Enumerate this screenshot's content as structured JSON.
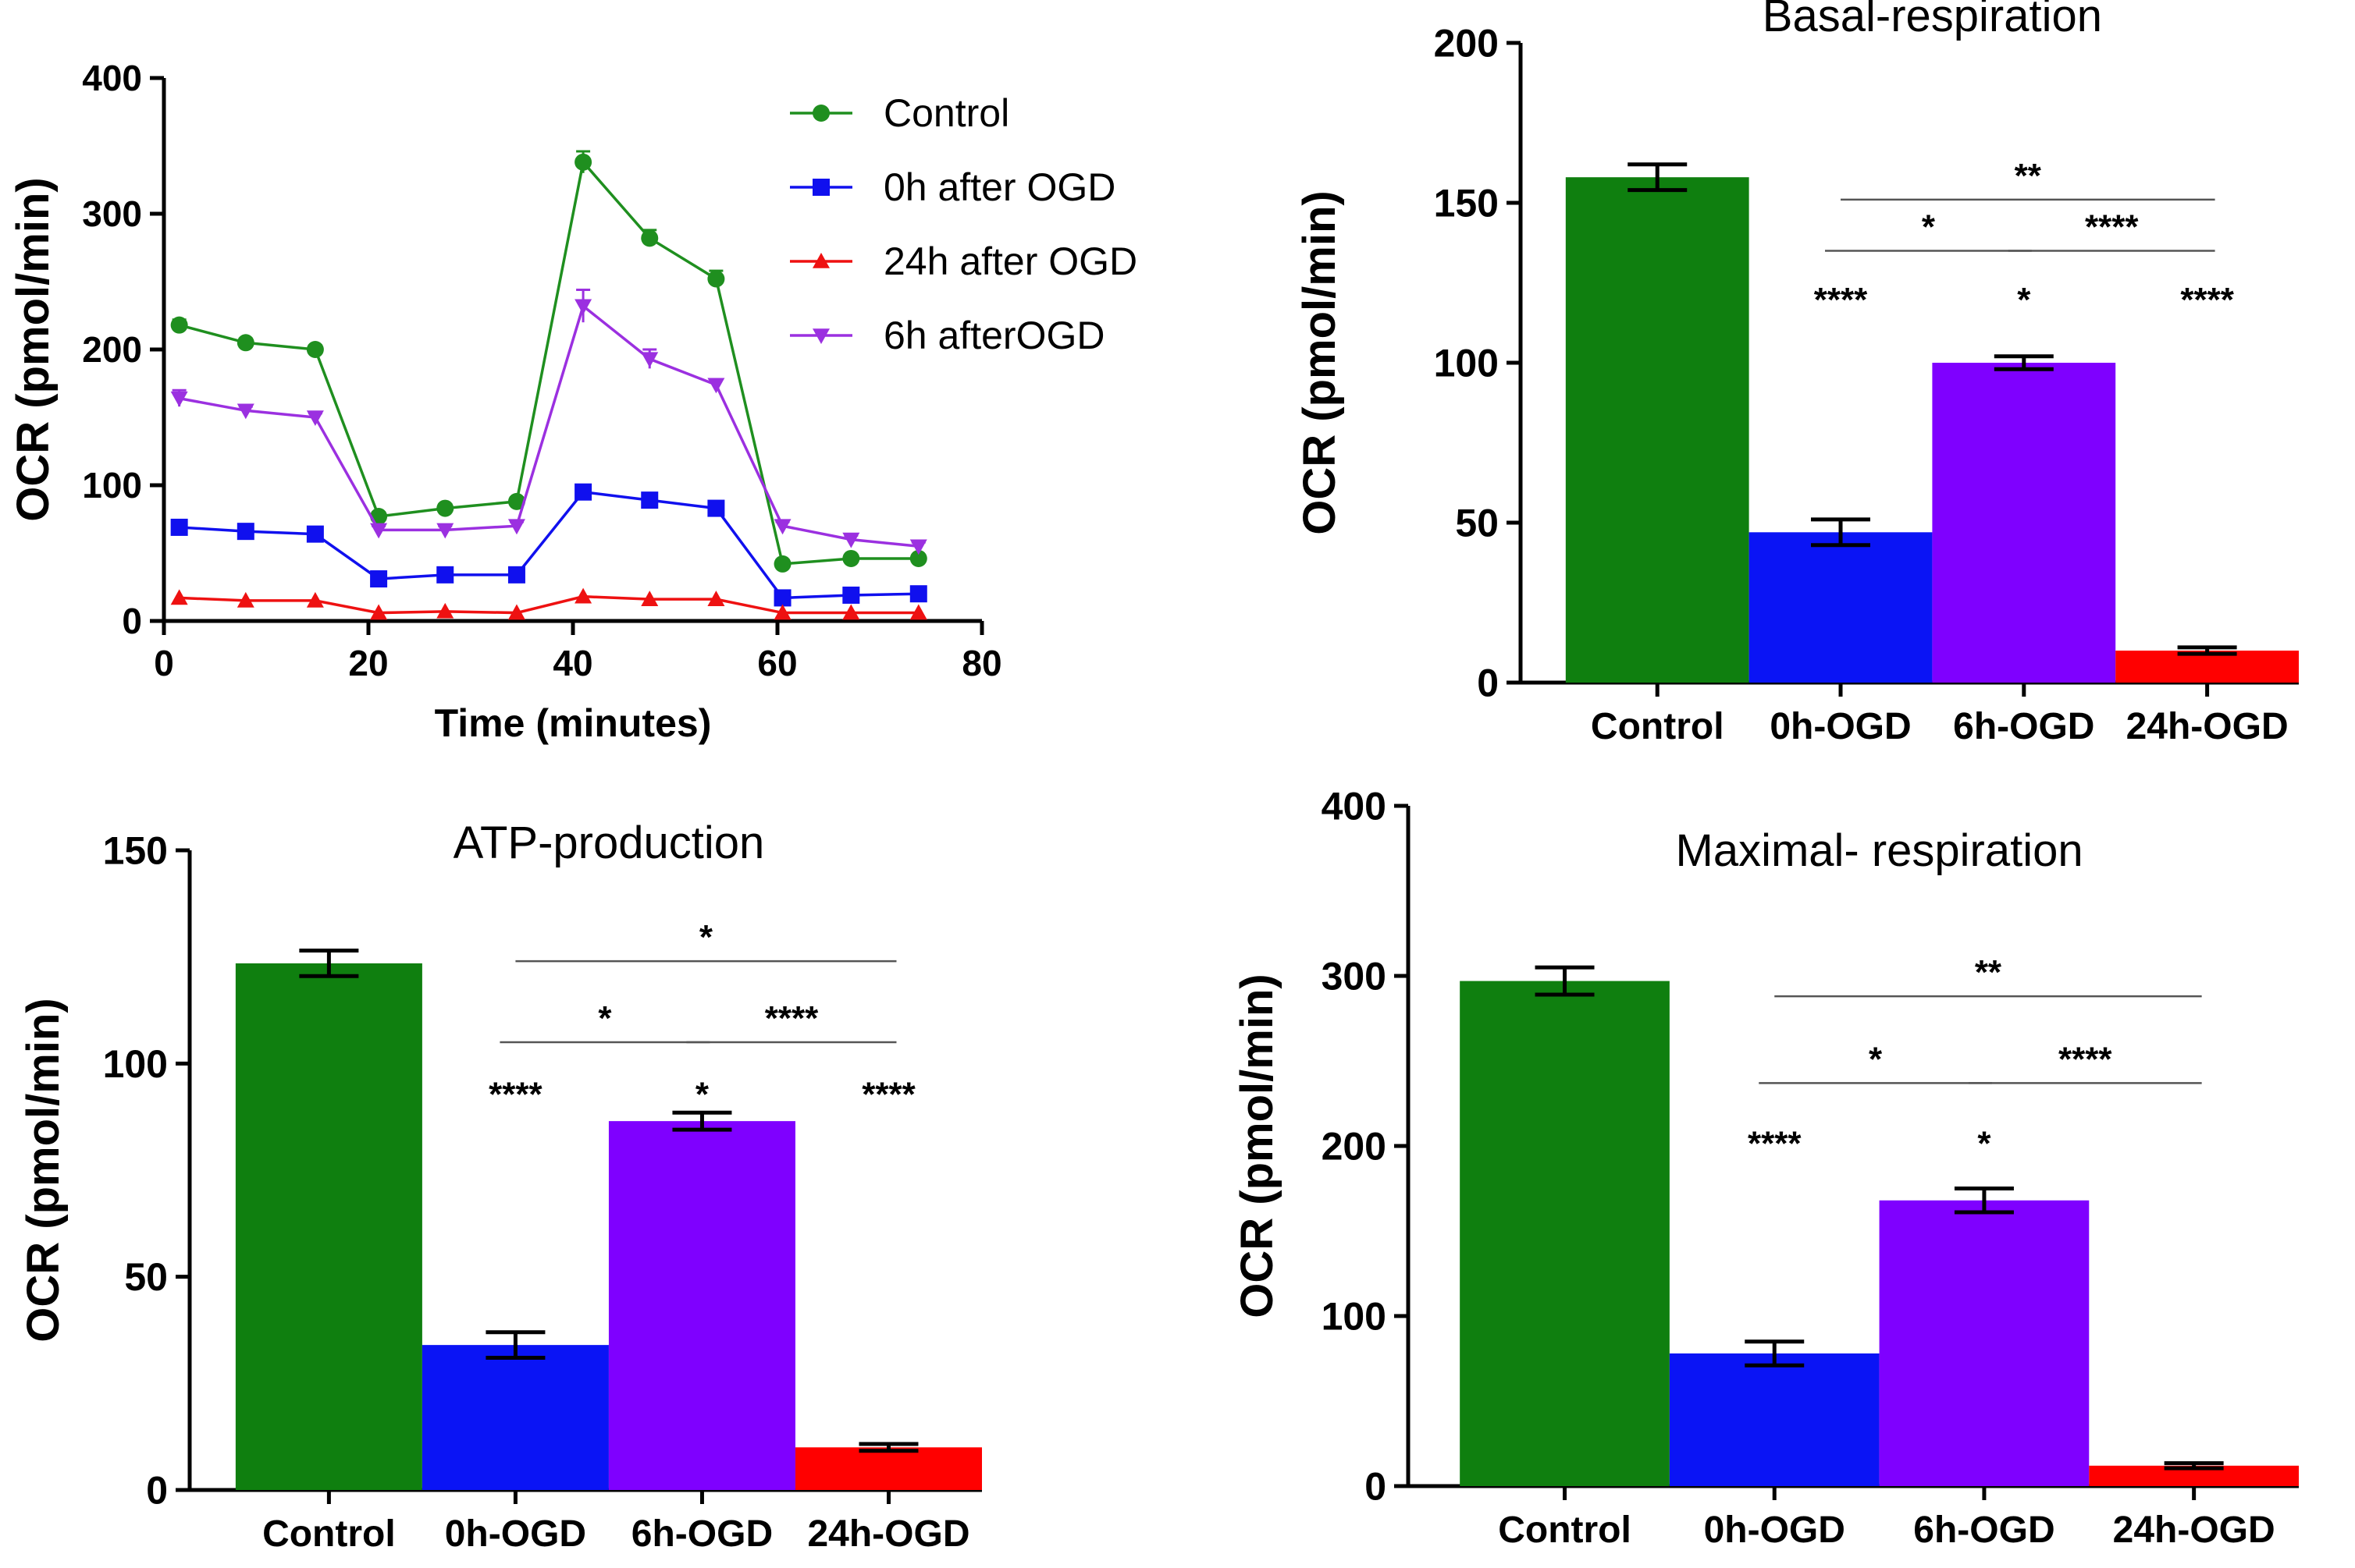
{
  "chart_data": [
    {
      "id": "timecourse",
      "type": "line",
      "title": "",
      "xlabel": "Time (minutes)",
      "ylabel": "OCR (pmol/min)",
      "xlim": [
        0,
        80
      ],
      "ylim": [
        0,
        400
      ],
      "xticks": [
        "0",
        "20",
        "40",
        "60",
        "80"
      ],
      "yticks": [
        "0",
        "100",
        "200",
        "300",
        "400"
      ],
      "x": [
        1.5,
        8,
        14.8,
        21,
        27.5,
        34.5,
        41,
        47.5,
        54,
        60.5,
        67.2,
        73.8
      ],
      "series": [
        {
          "name": "Control",
          "color": "#1f8f1f",
          "marker": "circle",
          "values": [
            218,
            205,
            200,
            77,
            83,
            88,
            338,
            282,
            252,
            42,
            46,
            46
          ],
          "errors": [
            4,
            3,
            3,
            3,
            3,
            3,
            8,
            6,
            6,
            3,
            2,
            2
          ]
        },
        {
          "name": "0h after OGD",
          "color": "#1010ee",
          "marker": "square",
          "values": [
            69,
            66,
            64,
            31,
            34,
            34,
            95,
            89,
            83,
            17,
            19,
            20
          ],
          "errors": [
            3,
            3,
            3,
            2,
            2,
            2,
            5,
            4,
            3,
            2,
            1,
            1
          ]
        },
        {
          "name": "24h after OGD",
          "color": "#ee1111",
          "marker": "triangle-up",
          "values": [
            17,
            15,
            15,
            6,
            7,
            6,
            18,
            16,
            16,
            6,
            6,
            6
          ],
          "errors": [
            1,
            1,
            1,
            1,
            1,
            1,
            1,
            1,
            1,
            1,
            1,
            1
          ]
        },
        {
          "name": "6h afterOGD",
          "color": "#9b30e0",
          "marker": "triangle-down",
          "values": [
            164,
            155,
            150,
            67,
            67,
            70,
            232,
            193,
            174,
            70,
            60,
            55
          ],
          "errors": [
            6,
            3,
            3,
            3,
            3,
            3,
            12,
            7,
            4,
            3,
            3,
            3
          ]
        }
      ]
    },
    {
      "id": "basal",
      "type": "bar",
      "title": "Basal-respiration",
      "ylabel": "OCR (pmol/min)",
      "ylim": [
        0,
        200
      ],
      "yticks": [
        "0",
        "50",
        "100",
        "150",
        "200"
      ],
      "categories": [
        "Control",
        "0h-OGD",
        "6h-OGD",
        "24h-OGD"
      ],
      "values": [
        158,
        47,
        100,
        10
      ],
      "errors": [
        4,
        4,
        2,
        1
      ],
      "colors": [
        "#0f7f0f",
        "#0a14f5",
        "#7f00ff",
        "#ff0000"
      ],
      "annotations": [
        {
          "from": 1,
          "to": 3,
          "label": "**",
          "y": 151
        },
        {
          "from": 1,
          "to": 2,
          "label": "*",
          "y": 135
        },
        {
          "from": 2,
          "to": 3,
          "label": "****",
          "y": 135
        }
      ],
      "bar_labels": [
        {
          "index": 1,
          "label": "****",
          "y": 120
        },
        {
          "index": 2,
          "label": "*",
          "y": 120
        },
        {
          "index": 3,
          "label": "****",
          "y": 120
        }
      ]
    },
    {
      "id": "atp",
      "type": "bar",
      "title": "ATP-production",
      "ylabel": "OCR (pmol/min)",
      "ylim": [
        0,
        150
      ],
      "yticks": [
        "0",
        "50",
        "100",
        "150"
      ],
      "categories": [
        "Control",
        "0h-OGD",
        "6h-OGD",
        "24h-OGD"
      ],
      "values": [
        123.5,
        34,
        86.5,
        10
      ],
      "errors": [
        3,
        3,
        2,
        0.8
      ],
      "colors": [
        "#0f7f0f",
        "#0a14f5",
        "#7f00ff",
        "#ff0000"
      ],
      "annotations": [
        {
          "from": 1,
          "to": 3,
          "label": "*",
          "y": 124
        },
        {
          "from": 1,
          "to": 2,
          "label": "*",
          "y": 105
        },
        {
          "from": 2,
          "to": 3,
          "label": "****",
          "y": 105
        }
      ],
      "bar_labels": [
        {
          "index": 1,
          "label": "****",
          "y": 93
        },
        {
          "index": 2,
          "label": "*",
          "y": 93
        },
        {
          "index": 3,
          "label": "****",
          "y": 93
        }
      ]
    },
    {
      "id": "maximal",
      "type": "bar",
      "title": "Maximal- respiration",
      "ylabel": "OCR (pmol/min)",
      "ylim": [
        0,
        400
      ],
      "yticks": [
        "0",
        "100",
        "200",
        "300",
        "400"
      ],
      "categories": [
        "Control",
        "0h-OGD",
        "6h-OGD",
        "24h-OGD"
      ],
      "values": [
        297,
        78,
        168,
        12
      ],
      "errors": [
        8,
        7,
        7,
        1.5
      ],
      "colors": [
        "#0f7f0f",
        "#0a14f5",
        "#7f00ff",
        "#ff0000"
      ],
      "annotations": [
        {
          "from": 1,
          "to": 3,
          "label": "**",
          "y": 288
        },
        {
          "from": 1,
          "to": 2,
          "label": "*",
          "y": 237
        },
        {
          "from": 2,
          "to": 3,
          "label": "****",
          "y": 237
        }
      ],
      "bar_labels": [
        {
          "index": 1,
          "label": "****",
          "y": 202
        },
        {
          "index": 2,
          "label": "*",
          "y": 202
        }
      ]
    }
  ]
}
